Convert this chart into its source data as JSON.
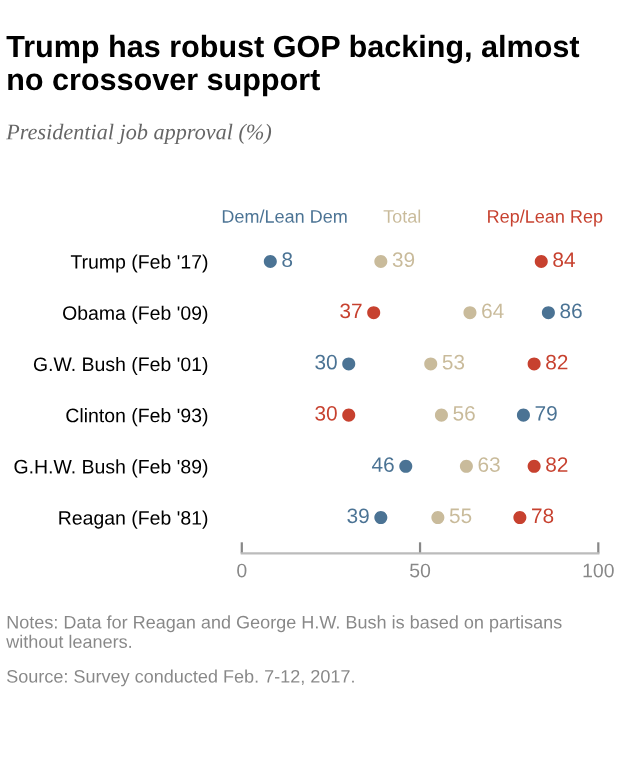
{
  "chart_data": {
    "type": "scatter",
    "orientation": "horizontal",
    "title": "Trump has robust GOP backing, almost no crossover support",
    "subtitle": "Presidential job approval (%)",
    "categories": [
      "Trump (Feb '17)",
      "Obama (Feb '09)",
      "G.W. Bush (Feb '01)",
      "Clinton (Feb '93)",
      "G.H.W. Bush (Feb '89)",
      "Reagan (Feb '81)"
    ],
    "series": [
      {
        "name": "Dem/Lean Dem",
        "color": "#4b7394",
        "values": [
          8,
          86,
          30,
          79,
          46,
          39
        ]
      },
      {
        "name": "Total",
        "color": "#c9bb9b",
        "values": [
          39,
          64,
          53,
          56,
          63,
          55
        ]
      },
      {
        "name": "Rep/Lean Rep",
        "color": "#c7412f",
        "values": [
          84,
          37,
          82,
          30,
          82,
          78
        ]
      }
    ],
    "xlim": [
      0,
      100
    ],
    "xticks": [
      0,
      50,
      100
    ],
    "data_labels": true,
    "legend": "top",
    "grid": false,
    "marker": "circle",
    "annotations": [
      "Notes: Data for Reagan and George H.W. Bush is based on partisans without leaners.",
      "Source: Survey conducted Feb. 7-12, 2017."
    ]
  }
}
